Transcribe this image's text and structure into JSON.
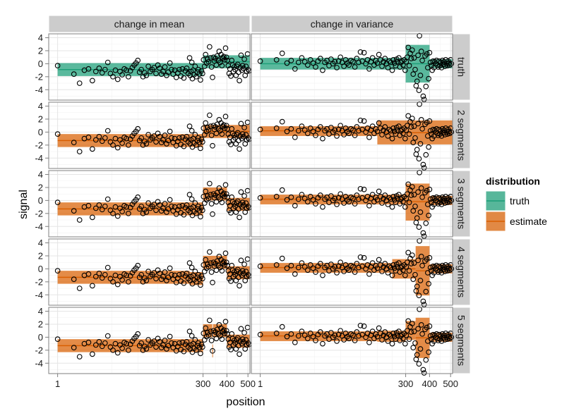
{
  "chart_data": {
    "type": "scatter",
    "xlabel": "position",
    "ylabel": "signal",
    "x_scale": "sqrt",
    "xlim": [
      0,
      510
    ],
    "ylim": [
      -5.6,
      4.6
    ],
    "x_ticks": [
      1,
      300,
      400,
      500
    ],
    "y_ticks": [
      -4,
      -2,
      0,
      2,
      4
    ],
    "grid": true,
    "columns": [
      "change in mean",
      "change in variance"
    ],
    "rows": [
      "truth",
      "2 segments",
      "3 segments",
      "4 segments",
      "5 segments"
    ],
    "legend": {
      "title": "distribution",
      "placement": "right",
      "entries": [
        {
          "label": "truth",
          "color": "#1b9e77"
        },
        {
          "label": "estimate",
          "color": "#d95f02"
        }
      ]
    },
    "data": {
      "change in mean": [
        [
          1,
          -0.3
        ],
        [
          8,
          -1.6
        ],
        [
          12,
          -3.0
        ],
        [
          16,
          -1.0
        ],
        [
          20,
          -0.8
        ],
        [
          24,
          -2.6
        ],
        [
          28,
          -1.2
        ],
        [
          32,
          -0.7
        ],
        [
          36,
          -1.4
        ],
        [
          40,
          -0.9
        ],
        [
          44,
          0.2
        ],
        [
          48,
          -1.5
        ],
        [
          52,
          -2.0
        ],
        [
          56,
          -1.0
        ],
        [
          60,
          -2.4
        ],
        [
          64,
          -1.2
        ],
        [
          68,
          -1.7
        ],
        [
          72,
          -0.8
        ],
        [
          76,
          -1.0
        ],
        [
          80,
          -2.0
        ],
        [
          84,
          -1.1
        ],
        [
          88,
          -0.6
        ],
        [
          92,
          -0.2
        ],
        [
          96,
          0.1
        ],
        [
          100,
          0.5
        ],
        [
          104,
          -1.3
        ],
        [
          108,
          -0.9
        ],
        [
          112,
          -2.0
        ],
        [
          116,
          -1.4
        ],
        [
          120,
          -1.8
        ],
        [
          125,
          -0.4
        ],
        [
          130,
          -1.2
        ],
        [
          135,
          -0.9
        ],
        [
          140,
          -0.6
        ],
        [
          145,
          -1.5
        ],
        [
          150,
          -0.2
        ],
        [
          155,
          -0.7
        ],
        [
          160,
          -1.6
        ],
        [
          165,
          -1.2
        ],
        [
          170,
          -0.5
        ],
        [
          175,
          -1.8
        ],
        [
          180,
          -1.3
        ],
        [
          185,
          0.1
        ],
        [
          190,
          -0.9
        ],
        [
          195,
          -1.6
        ],
        [
          200,
          -1.0
        ],
        [
          205,
          -2.1
        ],
        [
          210,
          -1.4
        ],
        [
          215,
          -0.9
        ],
        [
          220,
          -1.9
        ],
        [
          225,
          -0.8
        ],
        [
          230,
          -2.2
        ],
        [
          235,
          -1.1
        ],
        [
          240,
          -0.7
        ],
        [
          245,
          -1.5
        ],
        [
          250,
          0.9
        ],
        [
          252,
          -1.8
        ],
        [
          255,
          -1.2
        ],
        [
          258,
          0.2
        ],
        [
          260,
          -2.3
        ],
        [
          263,
          -1.0
        ],
        [
          266,
          -1.7
        ],
        [
          270,
          -0.4
        ],
        [
          274,
          -2.0
        ],
        [
          278,
          -1.3
        ],
        [
          282,
          -0.9
        ],
        [
          286,
          -1.6
        ],
        [
          290,
          -2.5
        ],
        [
          294,
          -1.1
        ],
        [
          298,
          -1.5
        ],
        [
          302,
          0.6
        ],
        [
          306,
          -0.4
        ],
        [
          310,
          1.4
        ],
        [
          314,
          0.1
        ],
        [
          318,
          0.7
        ],
        [
          322,
          0.3
        ],
        [
          326,
          2.6
        ],
        [
          330,
          0.9
        ],
        [
          334,
          -0.5
        ],
        [
          338,
          -2.1
        ],
        [
          342,
          1.0
        ],
        [
          346,
          0.4
        ],
        [
          350,
          0.8
        ],
        [
          354,
          -0.2
        ],
        [
          358,
          1.2
        ],
        [
          362,
          0.5
        ],
        [
          366,
          1.9
        ],
        [
          370,
          0.2
        ],
        [
          374,
          1.4
        ],
        [
          378,
          -0.3
        ],
        [
          382,
          0.9
        ],
        [
          386,
          1.1
        ],
        [
          390,
          0.6
        ],
        [
          394,
          2.4
        ],
        [
          398,
          1.0
        ],
        [
          402,
          0.5
        ],
        [
          406,
          -0.3
        ],
        [
          410,
          -1.5
        ],
        [
          414,
          -0.8
        ],
        [
          418,
          -1.9
        ],
        [
          422,
          0.5
        ],
        [
          426,
          -0.2
        ],
        [
          430,
          -1.2
        ],
        [
          434,
          -0.5
        ],
        [
          438,
          -0.9
        ],
        [
          442,
          -1.8
        ],
        [
          446,
          -0.4
        ],
        [
          450,
          -0.1
        ],
        [
          454,
          -1.3
        ],
        [
          458,
          -2.6
        ],
        [
          462,
          -0.6
        ],
        [
          466,
          1.3
        ],
        [
          470,
          -1.0
        ],
        [
          474,
          -0.3
        ],
        [
          478,
          -0.7
        ],
        [
          482,
          0.7
        ],
        [
          486,
          -1.8
        ],
        [
          490,
          -0.4
        ],
        [
          494,
          -1.2
        ],
        [
          498,
          1.5
        ],
        [
          502,
          -0.9
        ],
        [
          506,
          -1.1
        ]
      ],
      "change in variance": [
        [
          1,
          0.4
        ],
        [
          8,
          0.6
        ],
        [
          12,
          1.6
        ],
        [
          16,
          0.1
        ],
        [
          20,
          0.5
        ],
        [
          24,
          -0.8
        ],
        [
          28,
          0.2
        ],
        [
          32,
          0.9
        ],
        [
          36,
          0.3
        ],
        [
          40,
          -0.2
        ],
        [
          44,
          0.6
        ],
        [
          48,
          0.1
        ],
        [
          52,
          -0.5
        ],
        [
          56,
          0.4
        ],
        [
          60,
          0.8
        ],
        [
          64,
          -1.0
        ],
        [
          68,
          0.2
        ],
        [
          72,
          0.5
        ],
        [
          76,
          -0.3
        ],
        [
          80,
          0.7
        ],
        [
          84,
          0.0
        ],
        [
          88,
          0.3
        ],
        [
          92,
          -0.6
        ],
        [
          96,
          0.4
        ],
        [
          100,
          1.0
        ],
        [
          104,
          0.2
        ],
        [
          108,
          -0.4
        ],
        [
          112,
          0.6
        ],
        [
          116,
          0.1
        ],
        [
          120,
          -0.2
        ],
        [
          125,
          0.5
        ],
        [
          130,
          0.3
        ],
        [
          135,
          -0.5
        ],
        [
          140,
          0.8
        ],
        [
          145,
          0.2
        ],
        [
          150,
          1.8
        ],
        [
          155,
          0.4
        ],
        [
          160,
          1.7
        ],
        [
          165,
          0.0
        ],
        [
          170,
          0.6
        ],
        [
          175,
          -0.8
        ],
        [
          180,
          0.3
        ],
        [
          185,
          0.9
        ],
        [
          190,
          -0.2
        ],
        [
          195,
          0.5
        ],
        [
          200,
          0.1
        ],
        [
          205,
          1.4
        ],
        [
          210,
          0.6
        ],
        [
          215,
          -0.4
        ],
        [
          220,
          0.3
        ],
        [
          225,
          0.8
        ],
        [
          230,
          0.0
        ],
        [
          235,
          -0.6
        ],
        [
          240,
          0.4
        ],
        [
          245,
          0.2
        ],
        [
          250,
          -1.0
        ],
        [
          254,
          0.6
        ],
        [
          258,
          0.1
        ],
        [
          262,
          -0.3
        ],
        [
          266,
          0.7
        ],
        [
          270,
          0.3
        ],
        [
          274,
          0.9
        ],
        [
          278,
          -0.5
        ],
        [
          282,
          0.2
        ],
        [
          286,
          0.4
        ],
        [
          290,
          -0.2
        ],
        [
          294,
          0.6
        ],
        [
          298,
          -1.0
        ],
        [
          302,
          0.3
        ],
        [
          306,
          1.0
        ],
        [
          310,
          2.5
        ],
        [
          314,
          -0.3
        ],
        [
          318,
          1.6
        ],
        [
          322,
          0.8
        ],
        [
          326,
          2.1
        ],
        [
          330,
          -1.6
        ],
        [
          334,
          0.9
        ],
        [
          338,
          -0.9
        ],
        [
          342,
          -3.4
        ],
        [
          346,
          -2.7
        ],
        [
          350,
          1.3
        ],
        [
          354,
          -4.1
        ],
        [
          356,
          4.3
        ],
        [
          360,
          -1.8
        ],
        [
          364,
          1.9
        ],
        [
          368,
          0.5
        ],
        [
          372,
          -5.0
        ],
        [
          376,
          -5.5
        ],
        [
          380,
          1.2
        ],
        [
          384,
          -3.5
        ],
        [
          388,
          1.5
        ],
        [
          392,
          -0.6
        ],
        [
          396,
          -2.3
        ],
        [
          400,
          1.7
        ],
        [
          404,
          0.2
        ],
        [
          408,
          -0.3
        ],
        [
          412,
          -1.0
        ],
        [
          416,
          0.4
        ],
        [
          420,
          -0.6
        ],
        [
          424,
          0.3
        ],
        [
          428,
          0.0
        ],
        [
          432,
          0.5
        ],
        [
          436,
          -0.2
        ],
        [
          440,
          -0.5
        ],
        [
          444,
          0.4
        ],
        [
          448,
          -0.3
        ],
        [
          452,
          0.2
        ],
        [
          456,
          -0.6
        ],
        [
          460,
          0.5
        ],
        [
          464,
          -0.1
        ],
        [
          468,
          0.3
        ],
        [
          472,
          -0.4
        ],
        [
          476,
          0.6
        ],
        [
          480,
          0.0
        ],
        [
          484,
          -0.3
        ],
        [
          488,
          0.4
        ],
        [
          492,
          0.1
        ],
        [
          496,
          -0.2
        ],
        [
          500,
          0.6
        ],
        [
          504,
          0.0
        ]
      ]
    },
    "segments": {
      "change in mean": {
        "truth": [
          {
            "start": 1,
            "end": 300,
            "mean": -0.9,
            "lower": -1.9,
            "upper": 0.1
          },
          {
            "start": 300,
            "end": 510,
            "mean": 0.3,
            "lower": -0.7,
            "upper": 1.3
          }
        ],
        "2 segments": [
          {
            "start": 1,
            "end": 300,
            "mean": -1.3,
            "lower": -2.3,
            "upper": -0.3
          },
          {
            "start": 300,
            "end": 510,
            "mean": 0.1,
            "lower": -0.9,
            "upper": 1.1
          }
        ],
        "3 segments": [
          {
            "start": 1,
            "end": 300,
            "mean": -1.3,
            "lower": -2.3,
            "upper": -0.3
          },
          {
            "start": 300,
            "end": 400,
            "mean": 1.0,
            "lower": 0.0,
            "upper": 2.0
          },
          {
            "start": 400,
            "end": 510,
            "mean": -0.6,
            "lower": -1.6,
            "upper": 0.4
          }
        ],
        "4 segments": [
          {
            "start": 1,
            "end": 250,
            "mean": -1.3,
            "lower": -2.3,
            "upper": -0.3
          },
          {
            "start": 250,
            "end": 300,
            "mean": -1.5,
            "lower": -2.5,
            "upper": -0.5
          },
          {
            "start": 300,
            "end": 400,
            "mean": 1.0,
            "lower": 0.0,
            "upper": 2.0
          },
          {
            "start": 400,
            "end": 510,
            "mean": -0.6,
            "lower": -1.6,
            "upper": 0.4
          }
        ],
        "5 segments": [
          {
            "start": 1,
            "end": 300,
            "mean": -1.3,
            "lower": -2.3,
            "upper": -0.3
          },
          {
            "start": 300,
            "end": 337,
            "mean": 1.0,
            "lower": 0.0,
            "upper": 2.0
          },
          {
            "start": 337,
            "end": 340,
            "mean": -2.1,
            "lower": -3.1,
            "upper": -1.1
          },
          {
            "start": 340,
            "end": 400,
            "mean": 1.0,
            "lower": 0.0,
            "upper": 2.0
          },
          {
            "start": 400,
            "end": 510,
            "mean": -0.6,
            "lower": -1.6,
            "upper": 0.4
          }
        ]
      },
      "change in variance": {
        "truth": [
          {
            "start": 1,
            "end": 300,
            "mean": 0.0,
            "lower": -0.9,
            "upper": 0.9
          },
          {
            "start": 300,
            "end": 400,
            "mean": 0.0,
            "lower": -2.9,
            "upper": 2.9
          },
          {
            "start": 400,
            "end": 510,
            "mean": 0.0,
            "lower": -0.7,
            "upper": 0.7
          }
        ],
        "2 segments": [
          {
            "start": 1,
            "end": 200,
            "mean": 0.2,
            "lower": -0.6,
            "upper": 0.9
          },
          {
            "start": 200,
            "end": 510,
            "mean": -0.1,
            "lower": -1.9,
            "upper": 1.8
          }
        ],
        "3 segments": [
          {
            "start": 1,
            "end": 300,
            "mean": 0.2,
            "lower": -0.6,
            "upper": 0.9
          },
          {
            "start": 300,
            "end": 400,
            "mean": -0.2,
            "lower": -3.1,
            "upper": 2.6
          },
          {
            "start": 400,
            "end": 510,
            "mean": 0.0,
            "lower": -0.7,
            "upper": 0.7
          }
        ],
        "4 segments": [
          {
            "start": 1,
            "end": 250,
            "mean": 0.2,
            "lower": -0.6,
            "upper": 0.9
          },
          {
            "start": 250,
            "end": 340,
            "mean": 0.0,
            "lower": -1.5,
            "upper": 1.5
          },
          {
            "start": 340,
            "end": 400,
            "mean": -0.3,
            "lower": -4.1,
            "upper": 3.5
          },
          {
            "start": 400,
            "end": 510,
            "mean": 0.0,
            "lower": -0.7,
            "upper": 0.7
          }
        ],
        "5 segments": [
          {
            "start": 1,
            "end": 200,
            "mean": 0.2,
            "lower": -0.6,
            "upper": 0.9
          },
          {
            "start": 200,
            "end": 300,
            "mean": 0.2,
            "lower": -0.7,
            "upper": 1.0
          },
          {
            "start": 300,
            "end": 340,
            "mean": 0.5,
            "lower": -0.4,
            "upper": 2.5
          },
          {
            "start": 340,
            "end": 400,
            "mean": -0.1,
            "lower": -3.2,
            "upper": 3.0
          },
          {
            "start": 400,
            "end": 510,
            "mean": 0.0,
            "lower": -0.7,
            "upper": 0.7
          }
        ]
      }
    }
  }
}
